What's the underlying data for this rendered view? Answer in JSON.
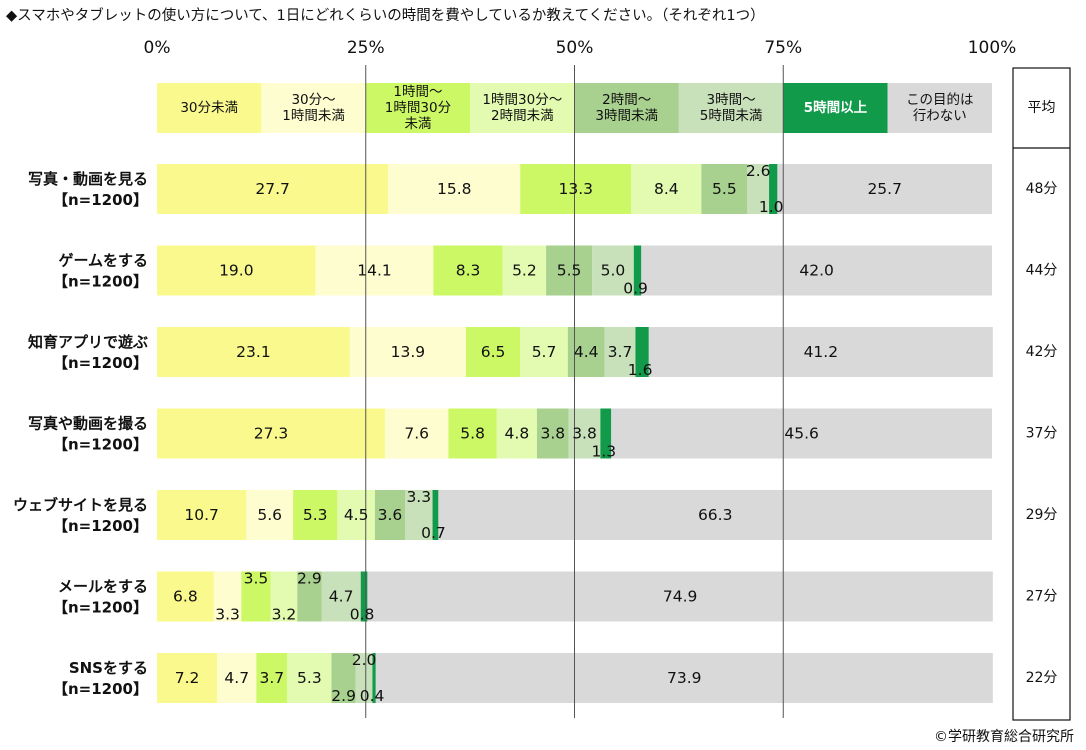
{
  "title": "◆スマホやタブレットの使い方について、1日にどれくらいの時間を費やしているか教えてください。（それぞれ1つ）",
  "credit": "©学研教育総合研究所",
  "chart_data": {
    "type": "bar",
    "stacked": "percent",
    "orientation": "horizontal",
    "x_tick_labels": [
      "0%",
      "25%",
      "50%",
      "75%",
      "100%"
    ],
    "xlim": [
      0,
      100
    ],
    "series": [
      {
        "name": "30分未満",
        "color": "#faf98e",
        "text_color": "#111111",
        "values": [
          27.7,
          19.0,
          23.1,
          27.3,
          10.7,
          6.8,
          7.2
        ]
      },
      {
        "name": "30分～\n1時間未満",
        "color": "#fefdd0",
        "text_color": "#111111",
        "values": [
          15.8,
          14.1,
          13.9,
          7.6,
          5.6,
          3.3,
          4.7
        ]
      },
      {
        "name": "1時間～\n1時間30分\n未満",
        "color": "#cdf866",
        "text_color": "#111111",
        "values": [
          13.3,
          8.3,
          6.5,
          5.8,
          5.3,
          3.5,
          3.7
        ]
      },
      {
        "name": "1時間30分～\n2時間未満",
        "color": "#e3fbb0",
        "text_color": "#111111",
        "values": [
          8.4,
          5.2,
          5.7,
          4.8,
          4.5,
          3.2,
          5.3
        ]
      },
      {
        "name": "2時間～\n3時間未満",
        "color": "#a8d08e",
        "text_color": "#111111",
        "values": [
          5.5,
          5.5,
          4.4,
          3.8,
          3.6,
          2.9,
          2.9
        ]
      },
      {
        "name": "3時間～\n5時間未満",
        "color": "#c9e1bb",
        "text_color": "#111111",
        "values": [
          2.6,
          5.0,
          3.7,
          3.8,
          3.3,
          4.7,
          2.0
        ]
      },
      {
        "name": "5時間以上",
        "color": "#129a4b",
        "text_color": "#ffffff",
        "values": [
          1.0,
          0.9,
          1.6,
          1.3,
          0.7,
          0.8,
          0.4
        ]
      },
      {
        "name": "この目的は\n行わない",
        "color": "#d9d9d9",
        "text_color": "#111111",
        "values": [
          25.7,
          42.0,
          41.2,
          45.6,
          66.3,
          74.9,
          73.9
        ]
      }
    ],
    "categories": [
      {
        "label": "写真・動画を見る",
        "n": "【n=1200】",
        "average": "48分"
      },
      {
        "label": "ゲームをする",
        "n": "【n=1200】",
        "average": "44分"
      },
      {
        "label": "知育アプリで遊ぶ",
        "n": "【n=1200】",
        "average": "42分"
      },
      {
        "label": "写真や動画を撮る",
        "n": "【n=1200】",
        "average": "37分"
      },
      {
        "label": "ウェブサイトを見る",
        "n": "【n=1200】",
        "average": "29分"
      },
      {
        "label": "メールをする",
        "n": "【n=1200】",
        "average": "27分"
      },
      {
        "label": "SNSをする",
        "n": "【n=1200】",
        "average": "22分"
      }
    ],
    "average_header": "平均"
  }
}
